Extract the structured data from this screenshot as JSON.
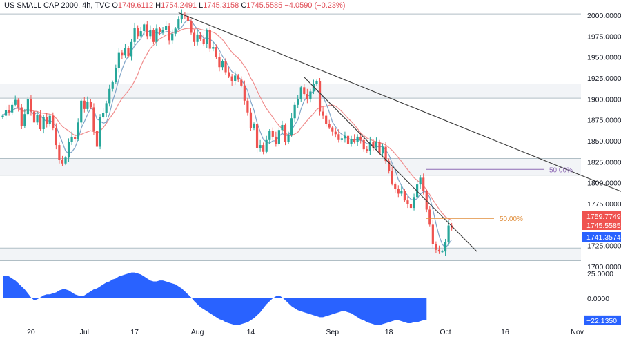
{
  "header": {
    "title": "US SMALL CAP 2000, 4h, TVC",
    "o_label": "O",
    "o_value": "1749.6112",
    "h_label": "H",
    "h_value": "1754.2491",
    "l_label": "L",
    "l_value": "1745.3158",
    "c_label": "C",
    "c_value": "1745.5585",
    "change": "−4.0590 (−0.23%)"
  },
  "colors": {
    "up": "#26a69a",
    "down": "#ef5350",
    "fast_ma": "#7fa4c8",
    "slow_ma": "#f08c8c",
    "osc": "#2962ff",
    "fib_purple": "#8e6bb5",
    "fib_orange": "#e08e3c",
    "zone": "#b0bec5",
    "trendline": "#3a3a3a"
  },
  "chart_data": [
    {
      "type": "candlestick",
      "title": "US SMALL CAP 2000, 4h, TVC",
      "x_ticks": [
        "20",
        "Jul",
        "17",
        "Aug",
        "14",
        "Sep",
        "18",
        "Oct",
        "16",
        "Nov"
      ],
      "y_ticks": [
        "2000.0000",
        "1975.0000",
        "1950.0000",
        "1925.0000",
        "1900.0000",
        "1875.0000",
        "1850.0000",
        "1825.0000",
        "1800.0000",
        "1775.0000",
        "1750.0000",
        "1725.0000",
        "1700.0000"
      ],
      "ylim": [
        1697,
        2015
      ],
      "grid": false,
      "closes": [
        1880,
        1887,
        1884,
        1893,
        1899,
        1890,
        1868,
        1882,
        1900,
        1885,
        1872,
        1881,
        1864,
        1878,
        1870,
        1880,
        1865,
        1845,
        1827,
        1823,
        1830,
        1849,
        1855,
        1852,
        1872,
        1898,
        1888,
        1897,
        1890,
        1862,
        1843,
        1878,
        1883,
        1895,
        1912,
        1920,
        1937,
        1955,
        1952,
        1961,
        1951,
        1968,
        1985,
        1975,
        1981,
        1989,
        1975,
        1982,
        1968,
        1984,
        1980,
        1982,
        1987,
        1970,
        1978,
        1984,
        1995,
        2001,
        1999,
        1993,
        1979,
        1968,
        1977,
        1972,
        1966,
        1982,
        1960,
        1962,
        1950,
        1938,
        1945,
        1932,
        1927,
        1921,
        1928,
        1923,
        1916,
        1898,
        1884,
        1865,
        1870,
        1841,
        1845,
        1837,
        1851,
        1862,
        1855,
        1846,
        1863,
        1869,
        1849,
        1857,
        1877,
        1893,
        1900,
        1914,
        1906,
        1900,
        1909,
        1918,
        1921,
        1885,
        1880,
        1870,
        1866,
        1861,
        1858,
        1851,
        1853,
        1856,
        1846,
        1852,
        1849,
        1855,
        1851,
        1840,
        1838,
        1849,
        1842,
        1849,
        1835,
        1843,
        1826,
        1814,
        1799,
        1793,
        1787,
        1790,
        1779,
        1775,
        1770,
        1783,
        1798,
        1806,
        1790,
        1768,
        1750,
        1727,
        1720,
        1718,
        1718,
        1729,
        1749,
        1746
      ],
      "trend_intervals": [
        [
          "3",
          "up"
        ],
        [
          "5",
          "down"
        ]
      ],
      "levels": [
        {
          "value": 2001.5,
          "kind": "zone-line"
        },
        {
          "value": 1918,
          "kind": "zone-line"
        },
        {
          "value": 1901,
          "kind": "zone-line"
        },
        {
          "value": 1829,
          "kind": "zone-line"
        },
        {
          "value": 1809,
          "kind": "zone-line"
        },
        {
          "value": 1722,
          "kind": "zone-line"
        },
        {
          "value": 1707,
          "kind": "zone-line"
        }
      ],
      "fib_levels": [
        {
          "label": "50.00%",
          "value": 1816,
          "color": "fib_purple"
        },
        {
          "label": "50.00%",
          "value": 1757.5,
          "color": "fib_orange"
        }
      ],
      "trendlines": [
        {
          "from": {
            "bar": 56,
            "value": 2003
          },
          "to": {
            "bar": 200,
            "value": 1785
          }
        },
        {
          "from": {
            "bar": 96,
            "value": 1926
          },
          "to": {
            "bar": 151,
            "value": 1718
          }
        }
      ],
      "price_labels": [
        {
          "value": "1759.7749",
          "y": 1759.77,
          "color": "#ef5350"
        },
        {
          "value": "1745.5585",
          "y": 1745.56,
          "color": "#ef5350"
        },
        {
          "value": "1741.3574",
          "y": 1741.36,
          "color": "#2962ff"
        }
      ]
    },
    {
      "type": "area",
      "title": "",
      "y_ticks": [
        "25.0000",
        "0.0000"
      ],
      "current_label": "−22.1350",
      "ylim": [
        -28,
        32
      ],
      "values": [
        22,
        23,
        22,
        20,
        18,
        15,
        12,
        9,
        5,
        1,
        -2,
        -1,
        1,
        3,
        4,
        4,
        5,
        6,
        8,
        9,
        9,
        8,
        6,
        4,
        3,
        2,
        3,
        5,
        7,
        9,
        10,
        12,
        14,
        16,
        17,
        19,
        20,
        22,
        23,
        24,
        25,
        26,
        26,
        25,
        24,
        22,
        20,
        18,
        17,
        17,
        18,
        18,
        17,
        16,
        15,
        14,
        12,
        10,
        7,
        4,
        1,
        -3,
        -6,
        -9,
        -11,
        -13,
        -15,
        -17,
        -19,
        -21,
        -22,
        -24,
        -25,
        -26,
        -27,
        -27,
        -26,
        -25,
        -24,
        -22,
        -20,
        -17,
        -14,
        -10,
        -6,
        -3,
        0,
        2,
        3,
        1,
        -2,
        -5,
        -8,
        -10,
        -12,
        -13,
        -14,
        -15,
        -16,
        -17,
        -18,
        -19,
        -19,
        -18,
        -17,
        -16,
        -15,
        -14,
        -13,
        -13,
        -14,
        -15,
        -17,
        -19,
        -21,
        -22,
        -24,
        -25,
        -26,
        -27,
        -27,
        -26,
        -25,
        -24,
        -23,
        -22,
        -22,
        -23,
        -24,
        -25,
        -25,
        -24,
        -24,
        -23,
        -22,
        -22
      ]
    }
  ]
}
